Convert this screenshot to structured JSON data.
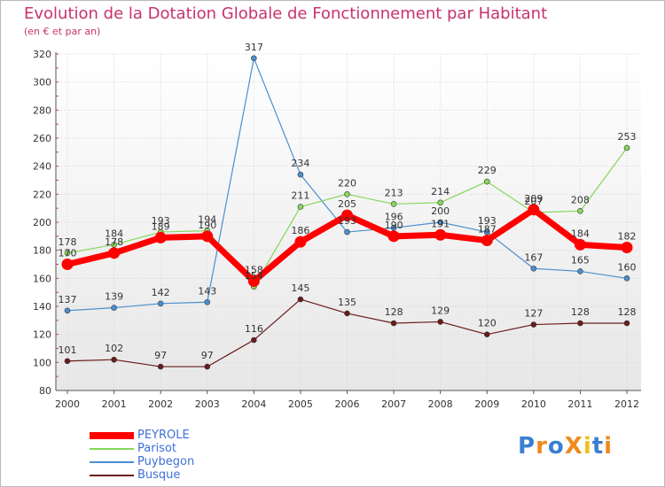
{
  "header": {
    "title": "Evolution de la Dotation Globale de Fonctionnement par Habitant",
    "subtitle": "(en € et par an)"
  },
  "logo": {
    "text": "ProXiti"
  },
  "chart_data": {
    "type": "line",
    "x": [
      "2000",
      "2001",
      "2002",
      "2003",
      "2004",
      "2005",
      "2006",
      "2007",
      "2008",
      "2009",
      "2010",
      "2011",
      "2012"
    ],
    "ylim": [
      80,
      320
    ],
    "yticks": [
      80,
      100,
      120,
      140,
      160,
      180,
      200,
      220,
      240,
      260,
      280,
      300,
      320
    ],
    "grid": true,
    "legend_position": "bottom-left",
    "series": [
      {
        "name": "Busque",
        "color": "#6b1a1a",
        "values": [
          101,
          102,
          97,
          97,
          116,
          145,
          135,
          128,
          129,
          120,
          127,
          128,
          128
        ]
      },
      {
        "name": "Puybegon",
        "color": "#4a8fcf",
        "values": [
          137,
          139,
          142,
          143,
          317,
          234,
          193,
          196,
          200,
          193,
          167,
          165,
          160
        ]
      },
      {
        "name": "Parisot",
        "color": "#86d65a",
        "values": [
          178,
          184,
          193,
          194,
          154,
          211,
          220,
          213,
          214,
          229,
          207,
          208,
          253
        ]
      },
      {
        "name": "PEYROLE",
        "color": "#ff0000",
        "values": [
          170,
          178,
          189,
          190,
          158,
          186,
          205,
          190,
          191,
          187,
          209,
          184,
          182
        ]
      }
    ]
  }
}
